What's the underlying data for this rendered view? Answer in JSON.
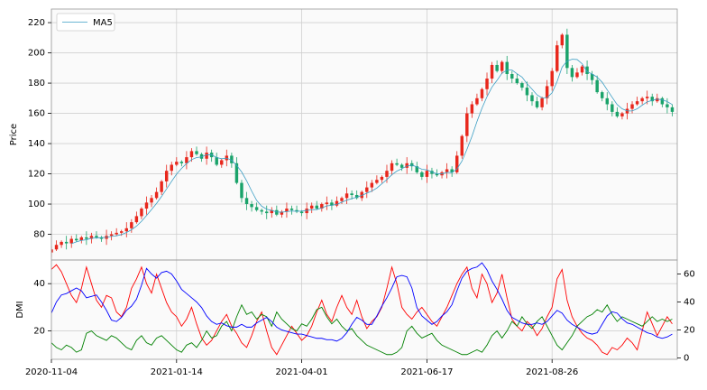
{
  "chart_data": [
    {
      "type": "candlestick",
      "ylabel": "Price",
      "ylim": [
        63,
        229
      ],
      "yticks": [
        80,
        100,
        120,
        140,
        160,
        180,
        200,
        220
      ],
      "grid": true,
      "legend": "upper left",
      "up_color": "#e8271c",
      "down_color": "#1aa36a",
      "open": [
        68,
        70,
        73,
        75,
        74,
        77,
        76,
        78,
        77,
        79,
        78,
        77,
        79,
        80,
        81,
        82,
        84,
        88,
        92,
        97,
        101,
        104,
        108,
        115,
        122,
        126,
        128,
        127,
        131,
        135,
        133,
        130,
        134,
        131,
        126,
        129,
        132,
        127,
        114,
        104,
        100,
        98,
        96,
        95,
        94,
        96,
        93,
        95,
        97,
        96,
        95,
        94,
        97,
        99,
        97,
        100,
        101,
        99,
        102,
        104,
        107,
        106,
        104,
        108,
        111,
        114,
        116,
        118,
        122,
        127,
        126,
        124,
        127,
        125,
        121,
        118,
        122,
        120,
        119,
        121,
        123,
        121,
        132,
        145,
        160,
        166,
        170,
        176,
        183,
        192,
        188,
        194,
        186,
        183,
        180,
        177,
        172,
        168,
        164,
        170,
        178,
        188,
        205,
        212,
        190,
        184,
        187,
        191,
        186,
        182,
        174,
        170,
        166,
        161,
        158,
        160,
        163,
        166,
        168,
        170,
        171,
        168,
        170,
        166,
        164
      ],
      "high": [
        72,
        76,
        76,
        79,
        79,
        80,
        79,
        82,
        81,
        82,
        79,
        83,
        82,
        84,
        83,
        88,
        90,
        95,
        98,
        105,
        106,
        111,
        116,
        126,
        128,
        131,
        129,
        135,
        137,
        138,
        134,
        138,
        136,
        134,
        130,
        136,
        134,
        131,
        116,
        108,
        102,
        101,
        97,
        99,
        98,
        99,
        96,
        101,
        99,
        99,
        96,
        101,
        101,
        102,
        101,
        105,
        103,
        105,
        105,
        111,
        109,
        109,
        109,
        115,
        116,
        119,
        119,
        126,
        129,
        130,
        127,
        131,
        129,
        128,
        122,
        126,
        124,
        123,
        122,
        127,
        125,
        135,
        146,
        164,
        168,
        173,
        177,
        187,
        194,
        195,
        195,
        198,
        188,
        186,
        181,
        181,
        174,
        171,
        171,
        182,
        190,
        208,
        213,
        216,
        192,
        190,
        192,
        195,
        188,
        185,
        175,
        174,
        168,
        164,
        161,
        167,
        168,
        171,
        171,
        175,
        173,
        173,
        171,
        170,
        166
      ],
      "low": [
        65,
        69,
        71,
        70,
        71,
        75,
        74,
        73,
        74,
        77,
        75,
        73,
        76,
        79,
        79,
        78,
        81,
        87,
        90,
        93,
        98,
        103,
        106,
        111,
        119,
        125,
        125,
        123,
        128,
        132,
        128,
        126,
        128,
        125,
        124,
        125,
        124,
        113,
        101,
        96,
        95,
        95,
        93,
        90,
        91,
        92,
        91,
        91,
        93,
        94,
        92,
        90,
        94,
        96,
        95,
        96,
        96,
        98,
        100,
        100,
        103,
        103,
        102,
        104,
        108,
        113,
        114,
        114,
        119,
        125,
        122,
        120,
        122,
        120,
        116,
        114,
        117,
        118,
        117,
        117,
        118,
        120,
        130,
        141,
        157,
        165,
        168,
        172,
        180,
        187,
        186,
        182,
        180,
        179,
        175,
        168,
        165,
        163,
        162,
        166,
        175,
        187,
        203,
        186,
        181,
        183,
        185,
        182,
        179,
        173,
        168,
        162,
        158,
        157,
        156,
        156,
        160,
        165,
        166,
        166,
        165,
        167,
        164,
        160,
        158
      ],
      "close": [
        70,
        73,
        75,
        74,
        77,
        76,
        78,
        77,
        79,
        78,
        77,
        79,
        80,
        81,
        82,
        84,
        88,
        92,
        97,
        101,
        104,
        108,
        115,
        122,
        126,
        128,
        127,
        131,
        135,
        133,
        130,
        134,
        131,
        126,
        129,
        132,
        127,
        114,
        104,
        100,
        98,
        96,
        95,
        94,
        96,
        93,
        95,
        97,
        96,
        95,
        94,
        97,
        99,
        97,
        100,
        101,
        99,
        102,
        104,
        107,
        106,
        104,
        108,
        111,
        114,
        116,
        118,
        122,
        127,
        126,
        124,
        127,
        125,
        121,
        118,
        122,
        120,
        119,
        121,
        123,
        121,
        132,
        145,
        160,
        166,
        170,
        176,
        183,
        192,
        188,
        194,
        186,
        183,
        180,
        177,
        172,
        168,
        164,
        170,
        178,
        188,
        205,
        212,
        190,
        184,
        187,
        191,
        186,
        182,
        174,
        170,
        166,
        161,
        158,
        160,
        163,
        166,
        168,
        170,
        171,
        168,
        170,
        166,
        164,
        161
      ],
      "series": [
        {
          "name": "MA5",
          "color": "#3b9ec4",
          "values": [
            null,
            null,
            null,
            null,
            73.8,
            75.0,
            76.0,
            76.4,
            77.4,
            77.6,
            77.8,
            78.0,
            78.6,
            79.0,
            79.8,
            81.2,
            83.0,
            85.4,
            88.6,
            92.4,
            96.4,
            100.4,
            105.0,
            110.0,
            115.0,
            119.8,
            123.6,
            126.8,
            129.4,
            130.8,
            131.2,
            132.6,
            132.6,
            130.8,
            130.0,
            130.4,
            129.0,
            125.6,
            121.2,
            115.4,
            108.6,
            102.4,
            98.6,
            96.6,
            95.8,
            94.8,
            94.6,
            95.0,
            95.4,
            95.2,
            95.4,
            95.8,
            96.2,
            96.4,
            97.4,
            98.8,
            99.2,
            99.8,
            101.2,
            102.6,
            103.6,
            104.6,
            105.8,
            107.2,
            108.6,
            110.6,
            113.4,
            116.2,
            119.4,
            121.8,
            123.4,
            125.2,
            125.8,
            124.6,
            123.0,
            122.6,
            121.2,
            120.0,
            120.0,
            121.0,
            120.8,
            123.2,
            128.4,
            136.2,
            144.8,
            154.6,
            163.4,
            171.0,
            177.4,
            181.8,
            186.6,
            188.6,
            188.6,
            186.2,
            184.0,
            179.6,
            176.0,
            172.2,
            170.2,
            170.4,
            173.6,
            181.0,
            190.6,
            194.6,
            195.8,
            195.6,
            192.8,
            187.6,
            186.0,
            184.0,
            180.6,
            175.6,
            170.6,
            165.8,
            163.0,
            161.6,
            161.6,
            163.0,
            165.4,
            167.6,
            168.6,
            169.4,
            169.0,
            167.8,
            165.8
          ]
        }
      ]
    },
    {
      "type": "line",
      "ylabel": "DMI",
      "ylim": [
        8,
        50
      ],
      "yticks": [
        20,
        40
      ],
      "y2lim": [
        -1,
        70
      ],
      "y2ticks": [
        0,
        20,
        40,
        60
      ],
      "grid": true,
      "categories": [
        "2020-11-04",
        null,
        null,
        null,
        null,
        null,
        null,
        null,
        null,
        null,
        null,
        null,
        null,
        null,
        null,
        null,
        null,
        null,
        null,
        null,
        null,
        null,
        null,
        null,
        null,
        "2021-01-14",
        null,
        null,
        null,
        null,
        null,
        null,
        null,
        null,
        null,
        null,
        null,
        null,
        null,
        null,
        null,
        null,
        null,
        null,
        null,
        null,
        null,
        null,
        null,
        null,
        "2021-04-01",
        null,
        null,
        null,
        null,
        null,
        null,
        null,
        null,
        null,
        null,
        null,
        null,
        null,
        null,
        null,
        null,
        null,
        null,
        null,
        null,
        null,
        null,
        null,
        null,
        "2021-06-17",
        null,
        null,
        null,
        null,
        null,
        null,
        null,
        null,
        null,
        null,
        null,
        null,
        null,
        null,
        null,
        null,
        null,
        null,
        null,
        null,
        null,
        null,
        null,
        null,
        "2021-08-26",
        null,
        null,
        null,
        null,
        null,
        null,
        null,
        null,
        null,
        null,
        null,
        null,
        null,
        null,
        null,
        null,
        null,
        null,
        null,
        null,
        null,
        null,
        null,
        null
      ],
      "series": [
        {
          "color": "#ff0000",
          "values": [
            46,
            48,
            45,
            40,
            35,
            32,
            38,
            47,
            40,
            33,
            30,
            35,
            34,
            28,
            26,
            30,
            38,
            42,
            47,
            40,
            36,
            44,
            38,
            32,
            28,
            26,
            22,
            25,
            30,
            23,
            17,
            14,
            16,
            20,
            24,
            27,
            22,
            19,
            15,
            13,
            18,
            24,
            28,
            20,
            13,
            10,
            14,
            18,
            22,
            19,
            16,
            18,
            22,
            28,
            33,
            27,
            24,
            30,
            35,
            30,
            27,
            33,
            26,
            21,
            24,
            26,
            30,
            38,
            47,
            40,
            30,
            27,
            25,
            28,
            30,
            27,
            24,
            22,
            26,
            30,
            35,
            40,
            44,
            47,
            38,
            34,
            44,
            40,
            32,
            36,
            44,
            34,
            25,
            22,
            20,
            24,
            22,
            18,
            21,
            26,
            30,
            42,
            46,
            33,
            26,
            22,
            19,
            17,
            16,
            14,
            11,
            10,
            13,
            12,
            14,
            17,
            15,
            12,
            20,
            28,
            23,
            18,
            22,
            26,
            23
          ]
        },
        {
          "color": "#008000",
          "values": [
            15,
            13,
            12,
            14,
            13,
            11,
            12,
            19,
            20,
            18,
            17,
            16,
            18,
            17,
            15,
            13,
            12,
            16,
            18,
            15,
            14,
            17,
            18,
            16,
            14,
            12,
            11,
            14,
            15,
            13,
            16,
            20,
            17,
            18,
            22,
            24,
            20,
            26,
            31,
            27,
            28,
            25,
            27,
            26,
            22,
            28,
            25,
            23,
            21,
            20,
            23,
            22,
            25,
            29,
            30,
            26,
            23,
            25,
            22,
            20,
            21,
            18,
            16,
            14,
            13,
            12,
            11,
            10,
            10,
            11,
            13,
            20,
            22,
            19,
            17,
            18,
            19,
            16,
            14,
            13,
            12,
            11,
            10,
            10,
            11,
            12,
            11,
            14,
            18,
            20,
            17,
            20,
            24,
            22,
            26,
            23,
            21,
            24,
            26,
            22,
            18,
            14,
            12,
            15,
            18,
            22,
            24,
            26,
            27,
            29,
            28,
            31,
            27,
            24,
            26,
            25,
            24,
            23,
            22,
            24,
            26,
            24,
            25,
            24,
            25
          ]
        },
        {
          "color": "#0000ff",
          "axis": "y2",
          "values": [
            32,
            40,
            45,
            46,
            48,
            50,
            48,
            43,
            44,
            45,
            40,
            34,
            27,
            26,
            29,
            34,
            37,
            42,
            52,
            64,
            60,
            57,
            61,
            62,
            60,
            55,
            49,
            46,
            43,
            40,
            36,
            30,
            26,
            24,
            25,
            23,
            22,
            22,
            24,
            22,
            22,
            25,
            27,
            29,
            26,
            22,
            20,
            19,
            18,
            17,
            17,
            16,
            15,
            14,
            14,
            13,
            13,
            12,
            14,
            18,
            24,
            29,
            27,
            24,
            24,
            30,
            37,
            43,
            50,
            58,
            59,
            58,
            50,
            36,
            30,
            27,
            24,
            26,
            30,
            33,
            38,
            48,
            57,
            62,
            64,
            65,
            68,
            63,
            55,
            49,
            42,
            34,
            29,
            27,
            25,
            24,
            24,
            25,
            24,
            26,
            30,
            34,
            32,
            27,
            24,
            22,
            20,
            18,
            17,
            18,
            24,
            30,
            33,
            32,
            28,
            25,
            24,
            22,
            20,
            18,
            17,
            15,
            14,
            15,
            17
          ]
        }
      ]
    }
  ]
}
